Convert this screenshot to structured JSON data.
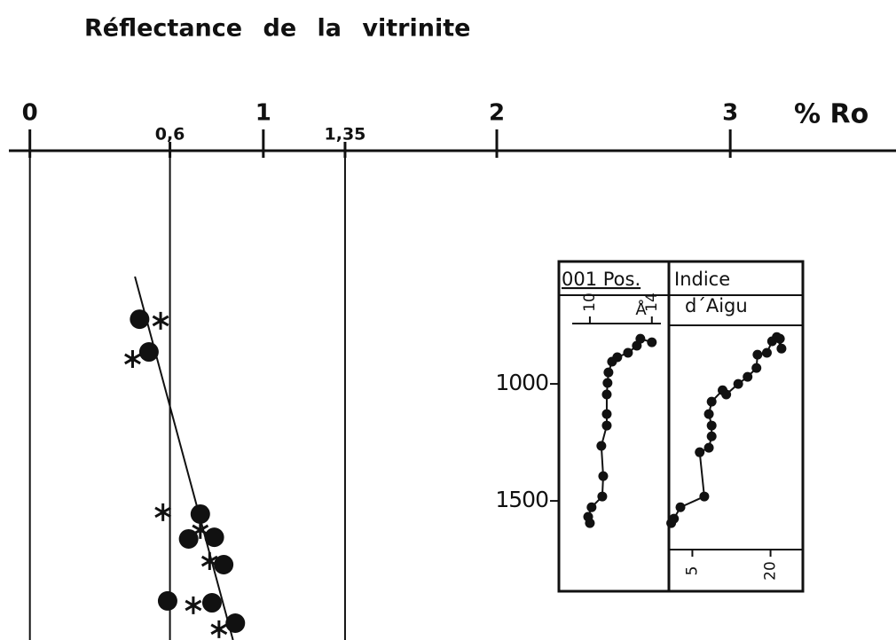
{
  "chart_data": [
    {
      "type": "scatter",
      "title": "Réflectance de la vitrinite",
      "x_label": "% Ro",
      "xlim": [
        -0.09,
        3.71
      ],
      "ylim": [
        0,
        2091
      ],
      "xticks": [
        0,
        {
          "value": 0.6,
          "label": "0,6"
        },
        1,
        {
          "value": 1.35,
          "label": "1,35"
        },
        2,
        3
      ],
      "reference_lines": [
        0,
        0.6,
        1.35
      ],
      "color": "#111111",
      "series": [
        {
          "marker": "dot",
          "x": [
            0.47,
            0.51,
            0.73,
            0.68,
            0.79,
            0.83,
            0.59,
            0.78,
            0.88
          ],
          "values": [
            720,
            860,
            1553,
            1659,
            1652,
            1769,
            1924,
            1932,
            2019
          ]
        },
        {
          "marker": "asterisk",
          "x": [
            0.56,
            0.44,
            0.57,
            0.73,
            0.77,
            0.7,
            0.81
          ],
          "values": [
            727,
            890,
            1545,
            1621,
            1754,
            1943,
            2045
          ]
        }
      ],
      "trend": {
        "x": [
          0.45,
          0.87
        ],
        "values": [
          538,
          2091
        ]
      }
    },
    {
      "type": "line",
      "title": [
        "001 Pos."
      ],
      "x_label": "Å",
      "xlim": [
        8.0,
        15.1
      ],
      "ylim": [
        477,
        1886
      ],
      "xticks": [
        10,
        14
      ],
      "yticks": [
        1000,
        1500
      ],
      "color": "#111111",
      "x": [
        10.0,
        9.89,
        10.11,
        10.8,
        10.86,
        10.74,
        11.09,
        11.09,
        11.09,
        11.14,
        11.2,
        11.43,
        11.77,
        12.46,
        13.03,
        13.26,
        14.0
      ],
      "values": [
        1595,
        1568,
        1527,
        1481,
        1394,
        1265,
        1178,
        1129,
        1045,
        996,
        951,
        905,
        886,
        867,
        837,
        807,
        822
      ]
    },
    {
      "type": "line",
      "title": [
        "Indice",
        "d´Aigu"
      ],
      "xlim": [
        0.5,
        26.2
      ],
      "ylim": [
        477,
        1886
      ],
      "xticks": [
        5,
        20
      ],
      "color": "#111111",
      "x": [
        0.94,
        1.47,
        2.71,
        7.29,
        6.41,
        8.17,
        8.7,
        8.7,
        8.17,
        8.7,
        10.8,
        11.5,
        13.8,
        15.6,
        17.3,
        17.5,
        19.3,
        20.3,
        21.8,
        22.1,
        21.2
      ],
      "values": [
        1595,
        1576,
        1527,
        1481,
        1292,
        1273,
        1224,
        1178,
        1129,
        1076,
        1027,
        1045,
        1000,
        970,
        932,
        875,
        867,
        818,
        807,
        849,
        800
      ]
    }
  ]
}
